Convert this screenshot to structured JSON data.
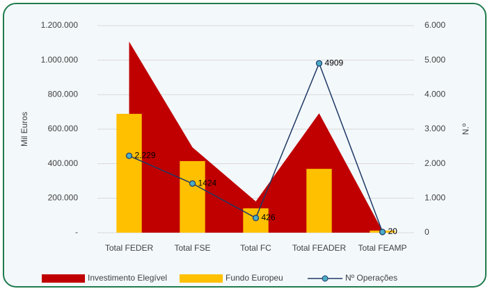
{
  "chart_data": {
    "type": "combo",
    "categories": [
      "Total FEDER",
      "Total FSE",
      "Total FC",
      "Total FEADER",
      "Total FEAMP"
    ],
    "series": [
      {
        "name": "Investimento Elegível",
        "type": "area",
        "color": "#c00000",
        "values": [
          1108000,
          495000,
          181000,
          692000,
          10000
        ]
      },
      {
        "name": "Fundo Europeu",
        "type": "bar",
        "color": "#ffc000",
        "values": [
          689000,
          415000,
          141000,
          370000,
          12000
        ]
      },
      {
        "name": "Nº Operações",
        "type": "line",
        "axis": "y2",
        "color": "#1f3864",
        "marker_color": "#4bacc6",
        "values": [
          2229,
          1424,
          426,
          4909,
          20
        ],
        "value_labels": [
          "2.229",
          "1424",
          "426",
          "4909",
          "20"
        ]
      }
    ],
    "ylabel": "Mil Euros",
    "y2label": "N.º",
    "ylim": [
      0,
      1200000
    ],
    "yticks": [
      {
        "value": 0,
        "label": "-"
      },
      {
        "value": 200000,
        "label": "200.000"
      },
      {
        "value": 400000,
        "label": "400.000"
      },
      {
        "value": 600000,
        "label": "600.000"
      },
      {
        "value": 800000,
        "label": "800.000"
      },
      {
        "value": 1000000,
        "label": "1.000.000"
      },
      {
        "value": 1200000,
        "label": "1.200.000"
      }
    ],
    "y2lim": [
      0,
      6000
    ],
    "y2ticks": [
      0,
      {
        "value": 1000,
        "label": "1.000"
      },
      {
        "value": 2000,
        "label": "2.000"
      },
      {
        "value": 3000,
        "label": "3.000"
      },
      {
        "value": 4000,
        "label": "4.000"
      },
      {
        "value": 5000,
        "label": "5.000"
      },
      {
        "value": 6000,
        "label": "6.000"
      }
    ],
    "grid": true,
    "legend": "bottom"
  }
}
